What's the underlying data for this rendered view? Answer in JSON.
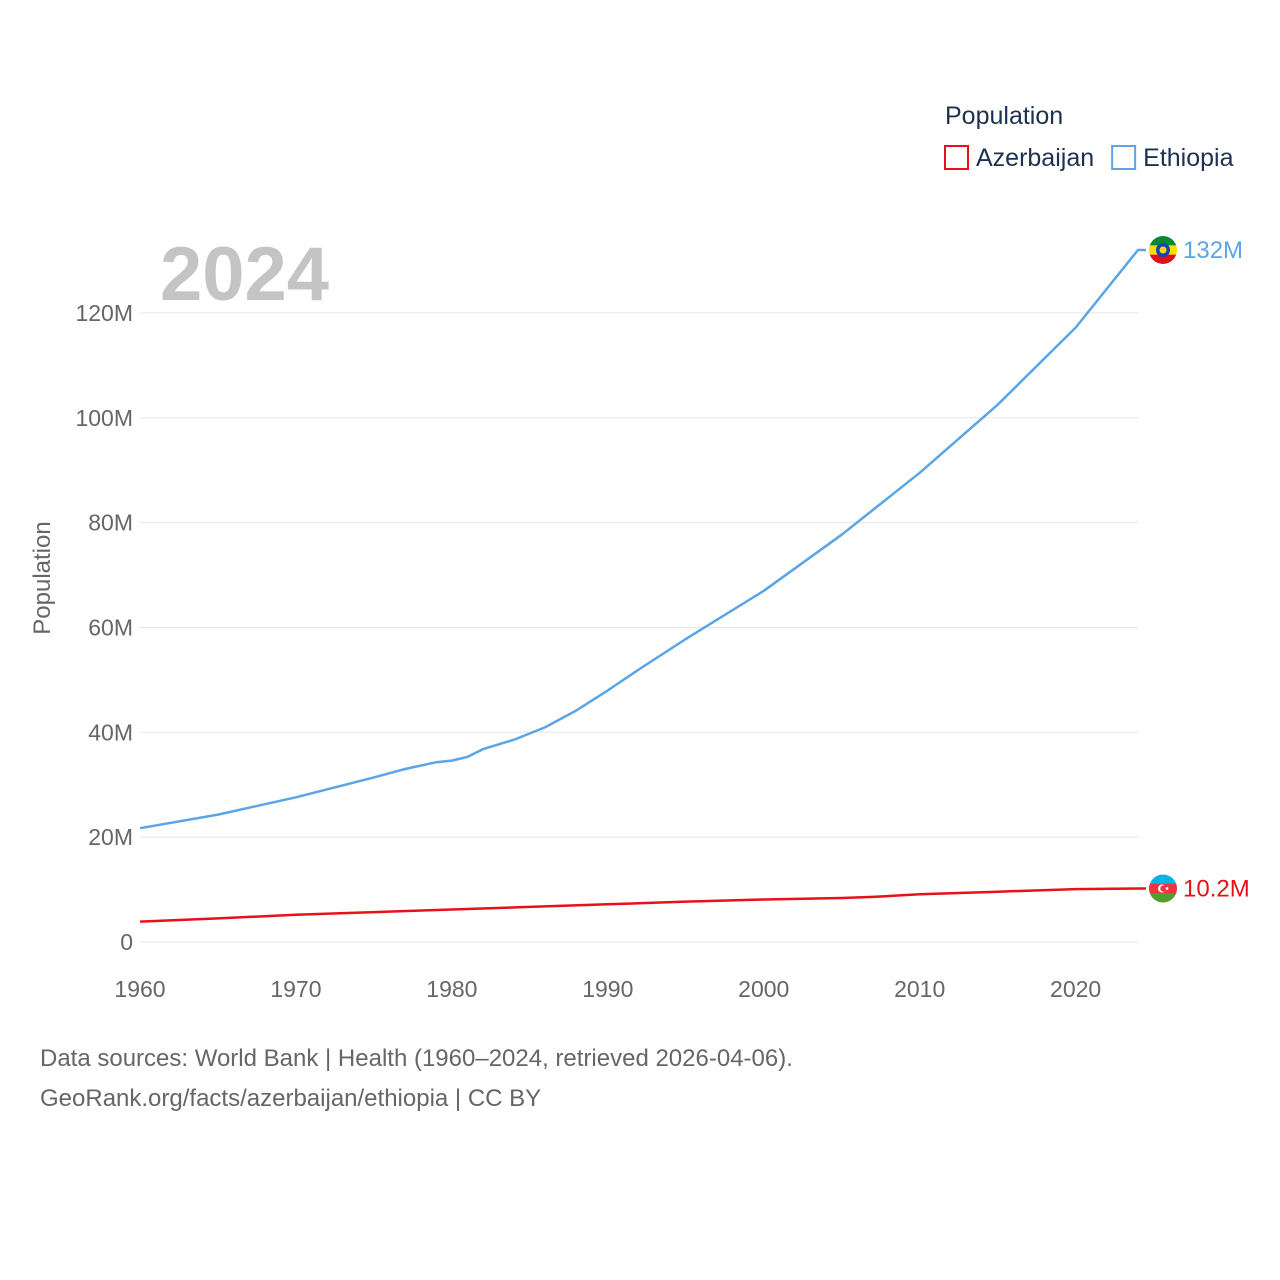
{
  "chart_data": {
    "type": "line",
    "year_label": "2024",
    "ylabel": "Population",
    "xlim": [
      1960,
      2024
    ],
    "ylim": [
      0,
      132000000
    ],
    "x_ticks": [
      1960,
      1970,
      1980,
      1990,
      2000,
      2010,
      2020
    ],
    "y_ticks": [
      {
        "value": 0,
        "label": "0"
      },
      {
        "value": 20000000,
        "label": "20M"
      },
      {
        "value": 40000000,
        "label": "40M"
      },
      {
        "value": 60000000,
        "label": "60M"
      },
      {
        "value": 80000000,
        "label": "80M"
      },
      {
        "value": 100000000,
        "label": "100M"
      },
      {
        "value": 120000000,
        "label": "120M"
      }
    ],
    "legend": {
      "title": "Population",
      "position": "top-right"
    },
    "series": [
      {
        "name": "Azerbaijan",
        "color": "#e8111a",
        "end_label": "10.2M",
        "flag": "azerbaijan-flag-icon",
        "points": [
          [
            1960,
            3900000
          ],
          [
            1965,
            4500000
          ],
          [
            1970,
            5200000
          ],
          [
            1975,
            5700000
          ],
          [
            1980,
            6200000
          ],
          [
            1985,
            6700000
          ],
          [
            1990,
            7200000
          ],
          [
            1995,
            7700000
          ],
          [
            2000,
            8100000
          ],
          [
            2005,
            8400000
          ],
          [
            2007,
            8600000
          ],
          [
            2010,
            9100000
          ],
          [
            2015,
            9600000
          ],
          [
            2020,
            10100000
          ],
          [
            2024,
            10200000
          ]
        ]
      },
      {
        "name": "Ethiopia",
        "color": "#5ba4e5",
        "end_label": "132M",
        "flag": "ethiopia-flag-icon",
        "points": [
          [
            1960,
            21700000
          ],
          [
            1965,
            24300000
          ],
          [
            1970,
            27600000
          ],
          [
            1975,
            31400000
          ],
          [
            1977,
            33000000
          ],
          [
            1979,
            34300000
          ],
          [
            1980,
            34600000
          ],
          [
            1981,
            35300000
          ],
          [
            1982,
            36800000
          ],
          [
            1984,
            38600000
          ],
          [
            1986,
            41000000
          ],
          [
            1988,
            44200000
          ],
          [
            1990,
            48000000
          ],
          [
            1992,
            52000000
          ],
          [
            1995,
            57800000
          ],
          [
            2000,
            67000000
          ],
          [
            2005,
            77700000
          ],
          [
            2010,
            89500000
          ],
          [
            2015,
            102500000
          ],
          [
            2020,
            117200000
          ],
          [
            2024,
            132000000
          ]
        ]
      }
    ]
  },
  "footer": {
    "line1": "Data sources: World Bank | Health (1960–2024, retrieved 2026-04-06).",
    "line2": "GeoRank.org/facts/azerbaijan/ethiopia | CC BY"
  }
}
